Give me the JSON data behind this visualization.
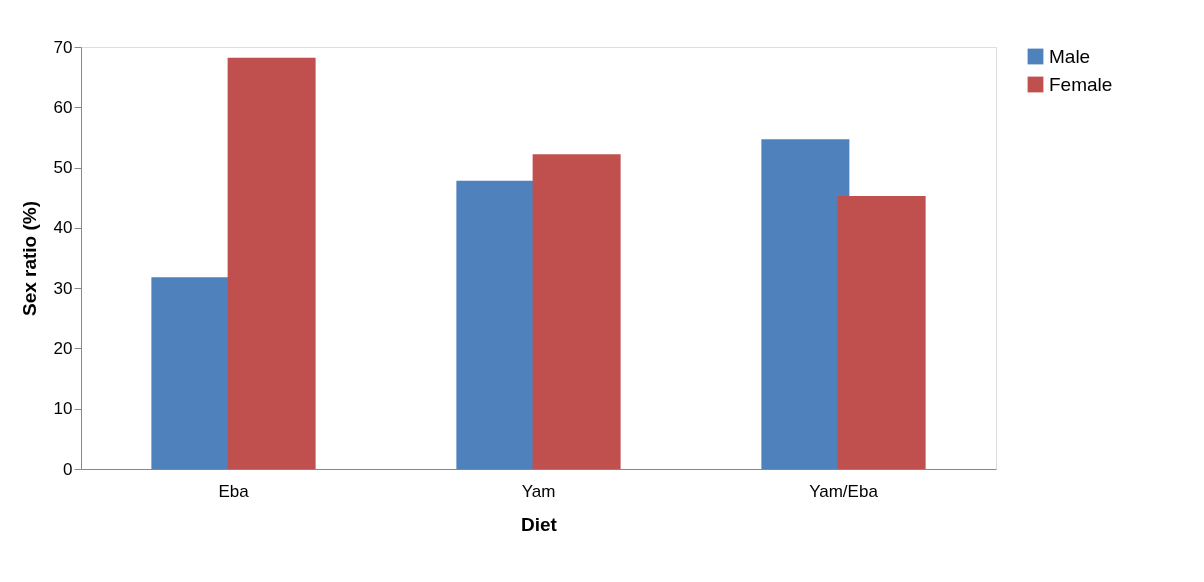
{
  "chart_data": {
    "type": "bar",
    "xlabel": "Diet",
    "ylabel": "Sex ratio (%)",
    "categories": [
      "Eba",
      "Yam",
      "Yam/Eba"
    ],
    "series": [
      {
        "name": "Male",
        "color": "#4f81bd",
        "values": [
          31.8,
          47.8,
          54.7
        ]
      },
      {
        "name": "Female",
        "color": "#c0504d",
        "values": [
          68.2,
          52.2,
          45.3
        ]
      }
    ],
    "ylim": [
      0,
      70
    ],
    "yticks": [
      0,
      10,
      20,
      30,
      40,
      50,
      60,
      70
    ],
    "grid": false,
    "legend": "right"
  }
}
